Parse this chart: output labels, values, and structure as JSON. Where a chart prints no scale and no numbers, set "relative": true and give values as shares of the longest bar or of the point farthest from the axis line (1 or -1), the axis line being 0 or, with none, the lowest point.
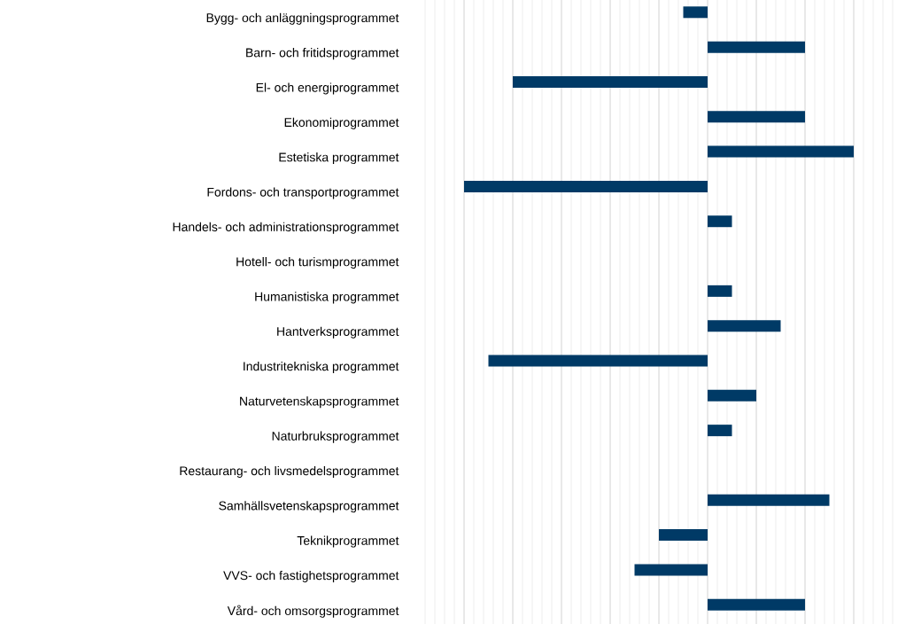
{
  "chart_data": {
    "type": "bar",
    "orientation": "horizontal",
    "relative": true,
    "grid": "x",
    "color": "#003a66",
    "categories": [
      "Bygg- och anläggningsprogrammet",
      "Barn- och fritidsprogrammet",
      "El- och energiprogrammet",
      "Ekonomiprogrammet",
      "Estetiska programmet",
      "Fordons- och transportprogrammet",
      "Handels- och administrationsprogrammet",
      "Hotell- och turismprogrammet",
      "Humanistiska programmet",
      "Hantverksprogrammet",
      "Industritekniska programmet",
      "Naturvetenskapsprogrammet",
      "Naturbruksprogrammet",
      "Restaurang- och livsmedelsprogrammet",
      "Samhällsvetenskapsprogrammet",
      "Teknikprogrammet",
      "VVS- och fastighetsprogrammet",
      "Vård- och omsorgsprogrammet"
    ],
    "values": [
      -0.1,
      0.4,
      -0.8,
      0.4,
      0.6,
      -1,
      0.1,
      0,
      0.1,
      0.3,
      -0.9,
      0.2,
      0.1,
      0,
      0.5,
      -0.2,
      -0.3,
      0.4
    ]
  }
}
